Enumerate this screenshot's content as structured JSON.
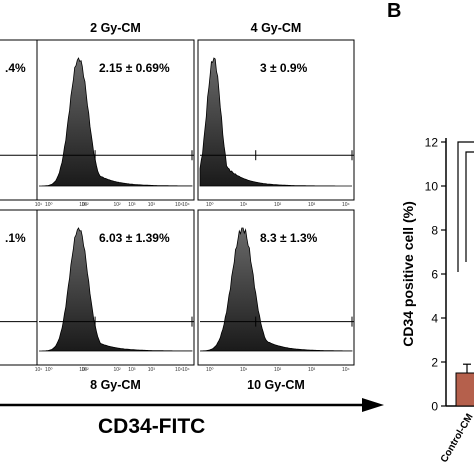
{
  "figure": {
    "panel_b_letter": "B",
    "flow_axis_label": "CD34-FITC"
  },
  "flow_panels": [
    {
      "label": "",
      "stat": ".4%",
      "label_pos": "top"
    },
    {
      "label": "2 Gy-CM",
      "stat": "2.15 ± 0.69%",
      "label_pos": "top"
    },
    {
      "label": "4 Gy-CM",
      "stat": "3 ± 0.9%",
      "label_pos": "top"
    },
    {
      "label": "",
      "stat": ".1%",
      "label_pos": "bottom"
    },
    {
      "label": "8 Gy-CM",
      "stat": "6.03 ± 1.39%",
      "label_pos": "bottom"
    },
    {
      "label": "10 Gy-CM",
      "stat": "8.3 ± 1.3%",
      "label_pos": "bottom"
    }
  ],
  "tick_labels": [
    "10⁰",
    "10¹",
    "10²",
    "10³",
    "10⁴"
  ],
  "chart_data": {
    "type": "bar",
    "categories": [
      "Control-CM"
    ],
    "values": [
      1.5
    ],
    "error": [
      0.4
    ],
    "ylabel": "CD34 positive cell (%)",
    "ylim": [
      0,
      12
    ],
    "yticks": [
      0,
      2,
      4,
      6,
      8,
      10,
      12
    ],
    "bar_color": "#b5604c"
  }
}
